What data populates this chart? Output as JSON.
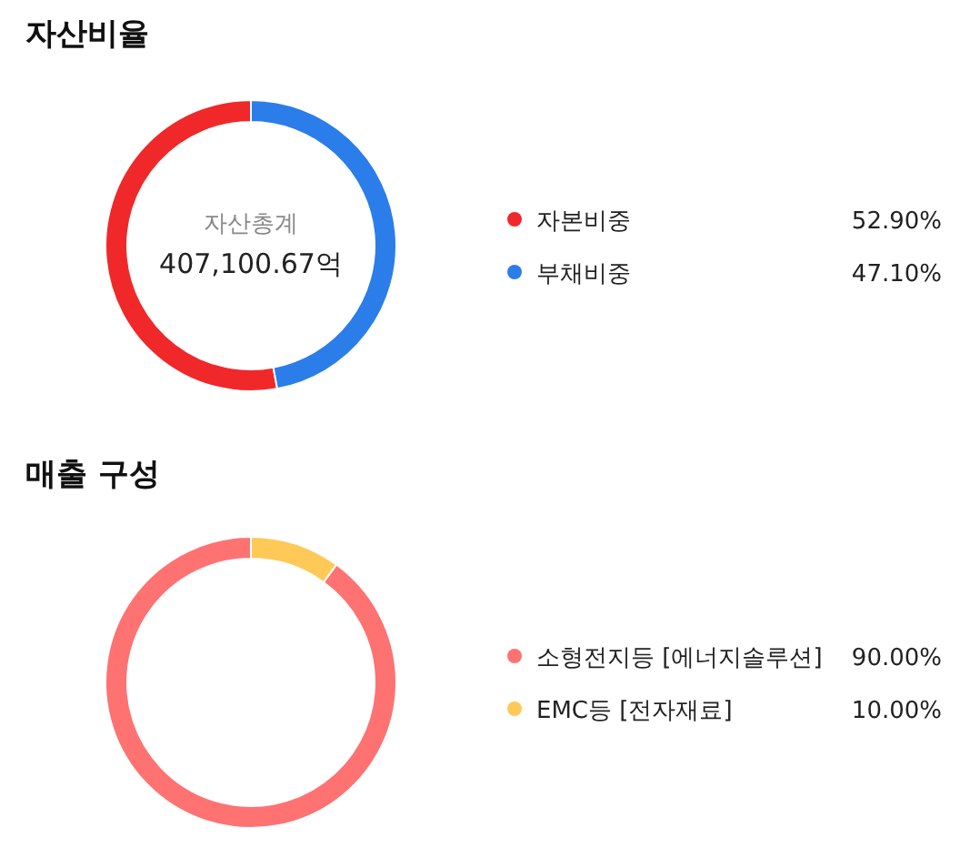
{
  "chart_data": [
    {
      "type": "donut",
      "title": "자산비율",
      "categories": [
        "자본비중",
        "부채비중"
      ],
      "values": [
        52.9,
        47.1
      ],
      "colors": [
        "#f0282a",
        "#2b7de9"
      ],
      "value_labels": [
        "52.90%",
        "47.10%"
      ],
      "annotations": [
        "자산총계",
        "407,100.67억"
      ],
      "legend": "right"
    },
    {
      "type": "donut",
      "title": "매출 구성",
      "categories": [
        "소형전지등 [에너지솔루션]",
        "EMC등 [전자재료]"
      ],
      "values": [
        90.0,
        10.0
      ],
      "colors": [
        "#ff7272",
        "#ffc957"
      ],
      "value_labels": [
        "90.00%",
        "10.00%"
      ],
      "legend": "right"
    }
  ]
}
